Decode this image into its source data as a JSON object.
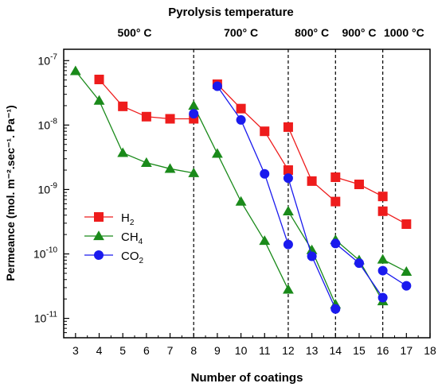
{
  "chart_data": {
    "type": "line",
    "top_title": "Pyrolysis temperature",
    "temperature_labels": [
      {
        "text": "500° C",
        "x": 5.5
      },
      {
        "text": "700° C",
        "x": 10
      },
      {
        "text": "800° C",
        "x": 13
      },
      {
        "text": "900° C",
        "x": 15
      },
      {
        "text": "1000 °C",
        "x": 16.9
      }
    ],
    "xlabel": "Number of coatings",
    "ylabel": "Permeance (mol. m⁻².sec⁻¹. Pa⁻¹)",
    "xlim": [
      2.5,
      18
    ],
    "ylim": [
      5e-12,
      1.5e-07
    ],
    "yscale": "log",
    "x_ticks": [
      3,
      4,
      5,
      6,
      7,
      8,
      9,
      10,
      11,
      12,
      13,
      14,
      15,
      16,
      17,
      18
    ],
    "y_tick_labels": [
      {
        "base": "10",
        "exp": "-11",
        "value": 1e-11
      },
      {
        "base": "10",
        "exp": "-10",
        "value": 1e-10
      },
      {
        "base": "10",
        "exp": "-9",
        "value": 1e-09
      },
      {
        "base": "10",
        "exp": "-8",
        "value": 1e-08
      },
      {
        "base": "10",
        "exp": "-7",
        "value": 1e-07
      }
    ],
    "vlines": [
      8,
      12,
      14,
      16
    ],
    "legend_position": "left",
    "series": [
      {
        "name": "H",
        "sub": "2",
        "color": "#ee1c1c",
        "marker": "square",
        "segments": [
          [
            [
              4,
              5.1e-08
            ],
            [
              5,
              1.95e-08
            ],
            [
              6,
              1.35e-08
            ],
            [
              7,
              1.25e-08
            ],
            [
              8,
              1.25e-08
            ]
          ],
          [
            [
              9,
              4.3e-08
            ],
            [
              10,
              1.8e-08
            ],
            [
              11,
              8e-09
            ],
            [
              12,
              2e-09
            ]
          ],
          [
            [
              12,
              9.3e-09
            ],
            [
              13,
              1.35e-09
            ],
            [
              14,
              6.5e-10
            ]
          ],
          [
            [
              14,
              1.55e-09
            ],
            [
              15,
              1.2e-09
            ],
            [
              16,
              7.8e-10
            ]
          ],
          [
            [
              16,
              4.6e-10
            ],
            [
              17,
              2.9e-10
            ]
          ]
        ]
      },
      {
        "name": "CH",
        "sub": "4",
        "color": "#1a8a1a",
        "marker": "triangle",
        "segments": [
          [
            [
              3,
              6.9e-08
            ],
            [
              4,
              2.4e-08
            ],
            [
              5,
              3.7e-09
            ],
            [
              6,
              2.6e-09
            ],
            [
              7,
              2.1e-09
            ],
            [
              8,
              1.8e-09
            ]
          ],
          [
            [
              8,
              2e-08
            ],
            [
              9,
              3.6e-09
            ],
            [
              10,
              6.5e-10
            ],
            [
              11,
              1.6e-10
            ],
            [
              12,
              2.8e-11
            ]
          ],
          [
            [
              12,
              4.6e-10
            ],
            [
              13,
              1.15e-10
            ],
            [
              14,
              1.65e-11
            ]
          ],
          [
            [
              14,
              1.65e-10
            ],
            [
              15,
              8e-11
            ],
            [
              16,
              1.85e-11
            ]
          ],
          [
            [
              16,
              8.2e-11
            ],
            [
              17,
              5.3e-11
            ]
          ]
        ]
      },
      {
        "name": "CO",
        "sub": "2",
        "color": "#1a1aee",
        "marker": "circle",
        "segments": [
          [
            [
              8,
              1.5e-08
            ]
          ],
          [
            [
              9,
              4e-08
            ],
            [
              10,
              1.2e-08
            ],
            [
              11,
              1.75e-09
            ],
            [
              12,
              1.4e-10
            ]
          ],
          [
            [
              12,
              1.5e-09
            ],
            [
              13,
              9.2e-11
            ],
            [
              14,
              1.4e-11
            ]
          ],
          [
            [
              14,
              1.45e-10
            ],
            [
              15,
              7.2e-11
            ],
            [
              16,
              2.1e-11
            ]
          ],
          [
            [
              16,
              5.5e-11
            ],
            [
              17,
              3.2e-11
            ]
          ]
        ]
      }
    ]
  }
}
